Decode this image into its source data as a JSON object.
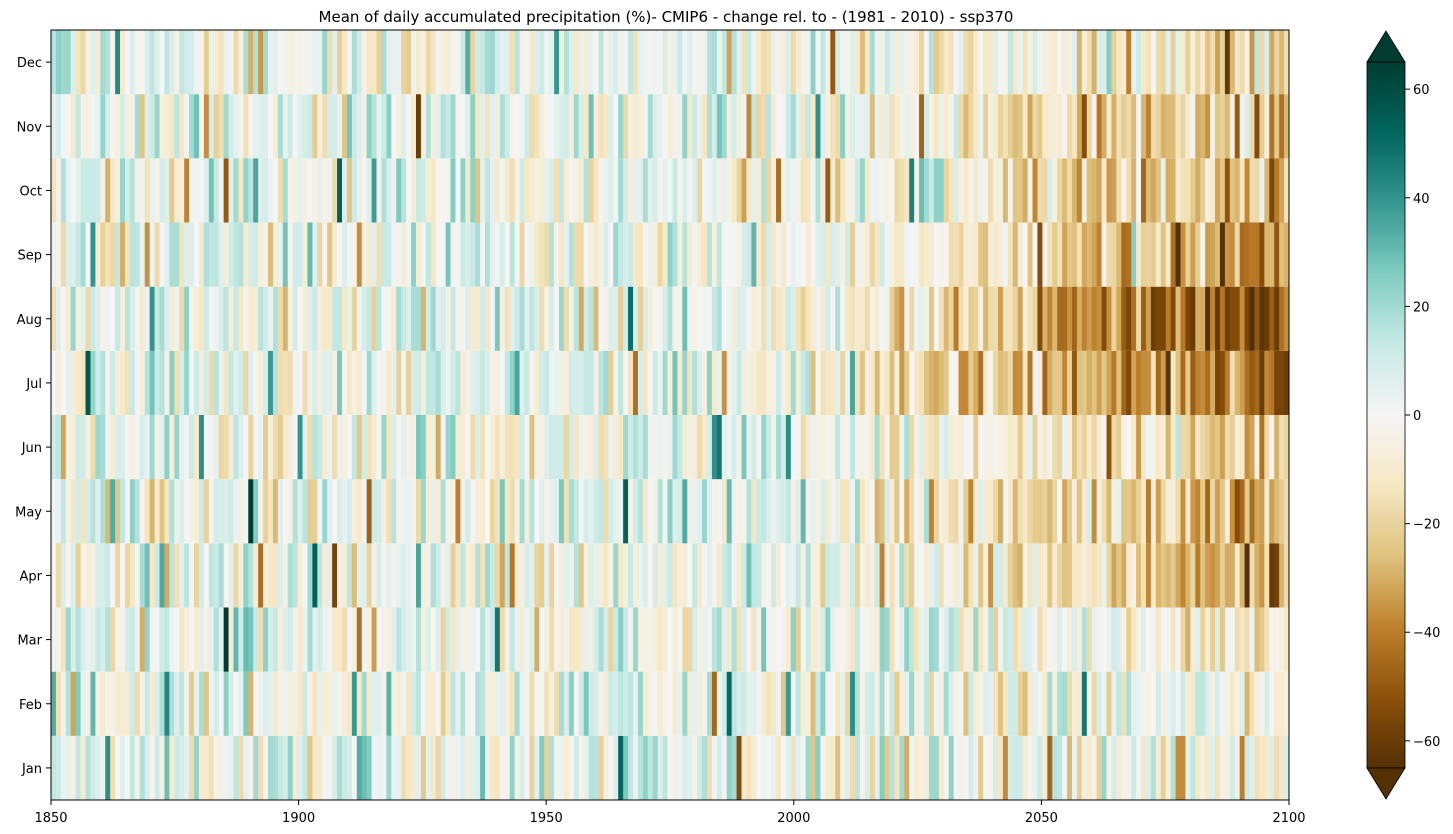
{
  "chart_data": {
    "type": "heatmap",
    "title": "Mean of daily accumulated precipitation (%)- CMIP6 - change rel. to - (1981 - 2010) - ssp370",
    "xlabel": "",
    "ylabel": "",
    "x_range": [
      1850,
      2100
    ],
    "x_ticks": [
      1850,
      1900,
      1950,
      2000,
      2050,
      2100
    ],
    "y_categories": [
      "Jan",
      "Feb",
      "Mar",
      "Apr",
      "May",
      "Jun",
      "Jul",
      "Aug",
      "Sep",
      "Oct",
      "Nov",
      "Dec"
    ],
    "colorbar": {
      "colormap": "BrBG",
      "range": [
        -65,
        65
      ],
      "ticks": [
        -60,
        -40,
        -20,
        0,
        20,
        40,
        60
      ],
      "tick_labels": [
        "−60",
        "−40",
        "−20",
        "0",
        "20",
        "40",
        "60"
      ],
      "extend": "both"
    },
    "trend_by_month_end_2100": {
      "Jan": -3,
      "Feb": -5,
      "Mar": -8,
      "Apr": -30,
      "May": -30,
      "Jun": -25,
      "Jul": -50,
      "Aug": -55,
      "Sep": -35,
      "Oct": -30,
      "Nov": -25,
      "Dec": -15
    },
    "grid": false
  }
}
